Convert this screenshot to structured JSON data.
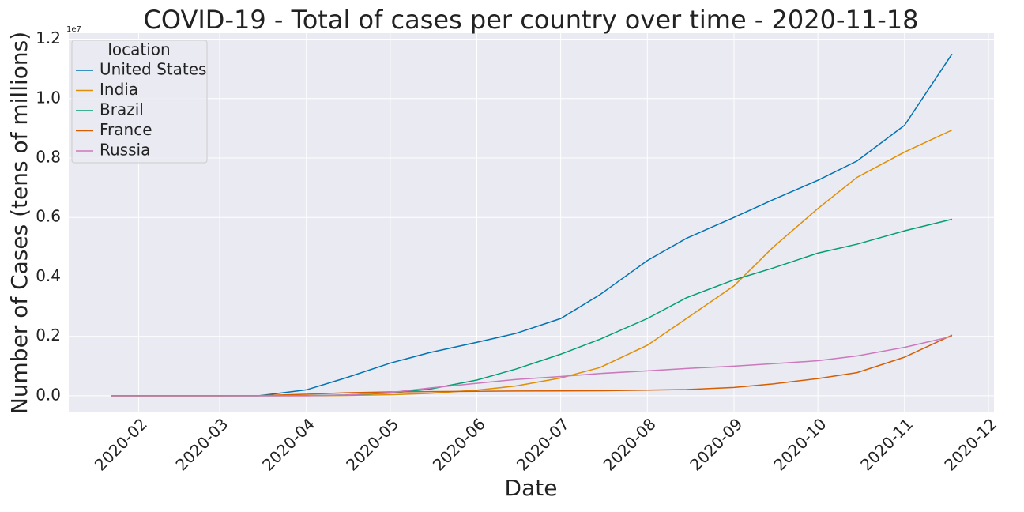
{
  "chart_data": {
    "type": "line",
    "title": "COVID-19 - Total of cases per country over time - 2020-11-18",
    "x_label": "Date",
    "y_label": "Number of Cases (tens of millions)",
    "y_offset_label": "1e7",
    "legend_title": "location",
    "legend": "upper left",
    "grid": true,
    "x": [
      "2020-01-22",
      "2020-02-15",
      "2020-03-01",
      "2020-03-15",
      "2020-04-01",
      "2020-04-15",
      "2020-05-01",
      "2020-05-15",
      "2020-06-01",
      "2020-06-15",
      "2020-07-01",
      "2020-07-15",
      "2020-08-01",
      "2020-08-15",
      "2020-09-01",
      "2020-09-15",
      "2020-10-01",
      "2020-10-15",
      "2020-11-01",
      "2020-11-18"
    ],
    "xlim": [
      "2020-01-07",
      "2020-12-03"
    ],
    "xticks": [
      {
        "value": "2020-02-01",
        "label": "2020-02"
      },
      {
        "value": "2020-03-01",
        "label": "2020-03"
      },
      {
        "value": "2020-04-01",
        "label": "2020-04"
      },
      {
        "value": "2020-05-01",
        "label": "2020-05"
      },
      {
        "value": "2020-06-01",
        "label": "2020-06"
      },
      {
        "value": "2020-07-01",
        "label": "2020-07"
      },
      {
        "value": "2020-08-01",
        "label": "2020-08"
      },
      {
        "value": "2020-09-01",
        "label": "2020-09"
      },
      {
        "value": "2020-10-01",
        "label": "2020-10"
      },
      {
        "value": "2020-11-01",
        "label": "2020-11"
      },
      {
        "value": "2020-12-01",
        "label": "2020-12"
      }
    ],
    "ylim": [
      -0.056,
      1.22
    ],
    "yticks": [
      {
        "value": 0,
        "label": "0.0"
      },
      0.2,
      0.4,
      0.6,
      0.8,
      {
        "value": 1,
        "label": "1.0"
      },
      1.2
    ],
    "series": [
      {
        "name": "United States",
        "color": "#0173b2",
        "values": [
          0,
          0,
          0,
          0.0002,
          0.02,
          0.06,
          0.11,
          0.145,
          0.18,
          0.21,
          0.26,
          0.34,
          0.455,
          0.53,
          0.6,
          0.66,
          0.725,
          0.79,
          0.91,
          1.15
        ]
      },
      {
        "name": "India",
        "color": "#de8f05",
        "values": [
          0,
          0,
          0,
          0,
          0,
          0.0012,
          0.0035,
          0.008,
          0.019,
          0.033,
          0.06,
          0.095,
          0.17,
          0.26,
          0.37,
          0.5,
          0.63,
          0.735,
          0.82,
          0.894
        ]
      },
      {
        "name": "Brazil",
        "color": "#029e73",
        "values": [
          0,
          0,
          0,
          0,
          0.0006,
          0.0028,
          0.009,
          0.022,
          0.053,
          0.09,
          0.14,
          0.19,
          0.26,
          0.33,
          0.39,
          0.43,
          0.48,
          0.51,
          0.555,
          0.594
        ]
      },
      {
        "name": "France",
        "color": "#d55e00",
        "values": [
          0,
          0,
          0,
          0.0005,
          0.0052,
          0.01,
          0.013,
          0.014,
          0.015,
          0.016,
          0.0165,
          0.017,
          0.019,
          0.021,
          0.028,
          0.04,
          0.058,
          0.078,
          0.13,
          0.204
        ]
      },
      {
        "name": "Russia",
        "color": "#cc78bc",
        "values": [
          0,
          0,
          0,
          0,
          0.0003,
          0.0025,
          0.011,
          0.026,
          0.042,
          0.055,
          0.065,
          0.075,
          0.084,
          0.092,
          0.1,
          0.108,
          0.118,
          0.134,
          0.163,
          0.2
        ]
      }
    ]
  }
}
